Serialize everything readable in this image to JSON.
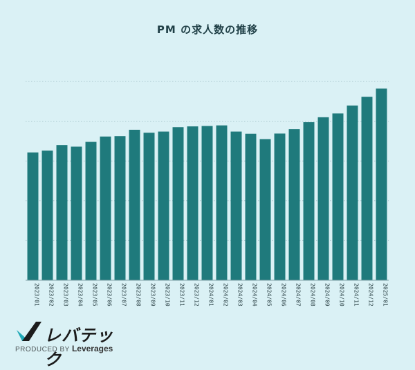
{
  "chart_data": {
    "type": "bar",
    "title": "PM の求人数の推移",
    "xlabel": "",
    "ylabel": "",
    "ylim": [
      0,
      100
    ],
    "grid": true,
    "legend": "none",
    "bar_color": "#1f7a7c",
    "grid_color": "#a9c8ce",
    "categories": [
      "2023/01",
      "2023/02",
      "2023/03",
      "2023/04",
      "2023/05",
      "2023/06",
      "2023/07",
      "2023/08",
      "2023/09",
      "2023/10",
      "2023/11",
      "2023/12",
      "2024/01",
      "2024/02",
      "2024/03",
      "2024/04",
      "2024/05",
      "2024/06",
      "2024/07",
      "2024/08",
      "2024/09",
      "2024/10",
      "2024/11",
      "2024/12",
      "2025/01"
    ],
    "values": [
      64.3,
      65.2,
      68.0,
      67.2,
      69.6,
      72.3,
      72.5,
      75.7,
      74.2,
      74.8,
      77.0,
      77.4,
      77.6,
      77.9,
      74.8,
      73.7,
      71.0,
      73.8,
      76.0,
      79.5,
      82.0,
      83.9,
      87.9,
      92.3,
      96.4
    ]
  },
  "branding": {
    "logo_text": "レバテック",
    "tagline_prefix": "PRODUCED BY",
    "tagline_brand": "Leverages",
    "mark_colors": [
      "#20a9b7",
      "#1c1c1c"
    ]
  }
}
